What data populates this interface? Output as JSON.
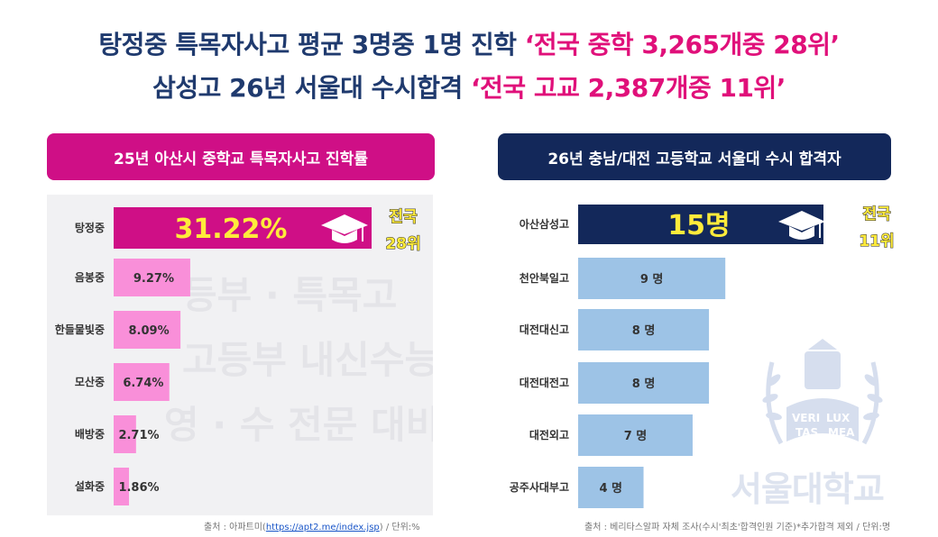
{
  "headline": {
    "line1_prefix": "탕정중 특목자사고 평균 3명중 1명 진학",
    "line1_highlight": "‘전국 중학 3,265개중 28위’",
    "line2_prefix": "삼성고 26년 서울대 수시합격",
    "line2_highlight": "‘전국 고교 2,387개중 11위’"
  },
  "watermark": {
    "line1": "등부 · 특목고",
    "line2": "고등부 내신수능",
    "line3": "영 · 수 전문 대비",
    "logo_text": "서울대학교",
    "seal_text": [
      "VERI",
      "TAS",
      "LUX",
      "MEA"
    ]
  },
  "chart_data": [
    {
      "type": "bar",
      "orientation": "horizontal",
      "title": "25년 아산시 중학교 특목자사고 진학률",
      "categories": [
        "탕정중",
        "음봉중",
        "한들물빛중",
        "모산중",
        "배방중",
        "설화중"
      ],
      "values": [
        31.22,
        9.27,
        8.09,
        6.74,
        2.71,
        1.86
      ],
      "labels": [
        "31.22%",
        "9.27%",
        "8.09%",
        "6.74%",
        "2.71%",
        "1.86%"
      ],
      "unit": "%",
      "highlight": {
        "category": "탕정중",
        "badge": [
          "전국",
          "28위"
        ]
      },
      "source": {
        "prefix": "출처 : 아파트미(",
        "link": "https://apt2.me/index.jsp",
        "suffix": ") / 단위:%"
      },
      "colors": {
        "highlight": "#cf0f86",
        "bar": "#f98fd9"
      }
    },
    {
      "type": "bar",
      "orientation": "horizontal",
      "title": "26년 충남/대전 고등학교 서울대 수시 합격자",
      "categories": [
        "아산삼성고",
        "천안북일고",
        "대전대신고",
        "대전대전고",
        "대전외고",
        "공주사대부고"
      ],
      "values": [
        15,
        9,
        8,
        8,
        7,
        4
      ],
      "labels": [
        "15명",
        "9 명",
        "8 명",
        "8 명",
        "7 명",
        "4 명"
      ],
      "unit": "명",
      "highlight": {
        "category": "아산삼성고",
        "badge": [
          "전국",
          "11위"
        ]
      },
      "source": {
        "text": "출처 : 베리타스알파 자체 조사(수시'최초'합격인원 기준)*추가합격 제외 / 단위:명"
      },
      "colors": {
        "highlight": "#13285a",
        "bar": "#9dc3e6"
      }
    }
  ]
}
